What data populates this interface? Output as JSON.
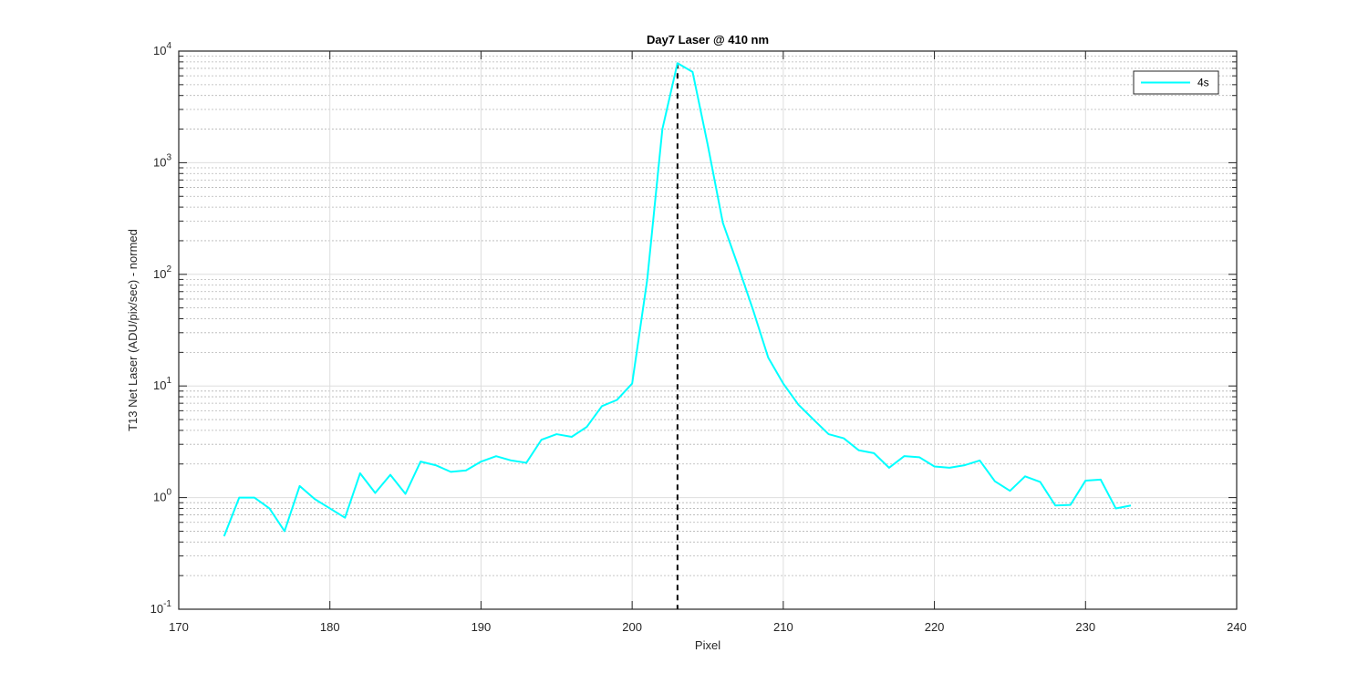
{
  "chart_data": {
    "type": "line",
    "title": "Day7 Laser @ 410 nm",
    "xlabel": "Pixel",
    "ylabel": "T13 Net Laser (ADU/pix/sec) - normed",
    "xlim": [
      170,
      240
    ],
    "ylim": [
      0.1,
      10000
    ],
    "yscale": "log",
    "grid": true,
    "legend_position": "top-right",
    "x_ticks": [
      "170",
      "180",
      "190",
      "200",
      "210",
      "220",
      "230",
      "240"
    ],
    "y_ticks": [
      {
        "base": "10",
        "exp": "-1"
      },
      {
        "base": "10",
        "exp": "0"
      },
      {
        "base": "10",
        "exp": "1"
      },
      {
        "base": "10",
        "exp": "2"
      },
      {
        "base": "10",
        "exp": "3"
      },
      {
        "base": "10",
        "exp": "4"
      }
    ],
    "vline": {
      "x": 203,
      "style": "dashed",
      "color": "#000000"
    },
    "series": [
      {
        "name": "4s",
        "color": "#00ffff",
        "x": [
          173,
          174,
          175,
          176,
          177,
          178,
          179,
          180,
          181,
          182,
          183,
          184,
          185,
          186,
          187,
          188,
          189,
          190,
          191,
          192,
          193,
          194,
          195,
          196,
          197,
          198,
          199,
          200,
          201,
          202,
          203,
          204,
          205,
          206,
          207,
          208,
          209,
          210,
          211,
          212,
          213,
          214,
          215,
          216,
          217,
          218,
          219,
          220,
          221,
          222,
          223,
          224,
          225,
          226,
          227,
          228,
          229,
          230,
          231,
          232,
          233
        ],
        "y": [
          0.45,
          1.0,
          1.0,
          0.8,
          0.5,
          1.27,
          0.97,
          0.8,
          0.66,
          1.65,
          1.1,
          1.6,
          1.08,
          2.1,
          1.95,
          1.7,
          1.75,
          2.1,
          2.35,
          2.15,
          2.05,
          3.3,
          3.7,
          3.5,
          4.3,
          6.6,
          7.5,
          10.5,
          90,
          2000,
          7800,
          6500,
          1450,
          290,
          120,
          48,
          18,
          10.5,
          6.8,
          5.0,
          3.7,
          3.4,
          2.65,
          2.5,
          1.85,
          2.35,
          2.3,
          1.9,
          1.85,
          1.95,
          2.15,
          1.4,
          1.15,
          1.55,
          1.38,
          0.85,
          0.86,
          1.42,
          1.45,
          0.8,
          0.85
        ]
      }
    ]
  }
}
